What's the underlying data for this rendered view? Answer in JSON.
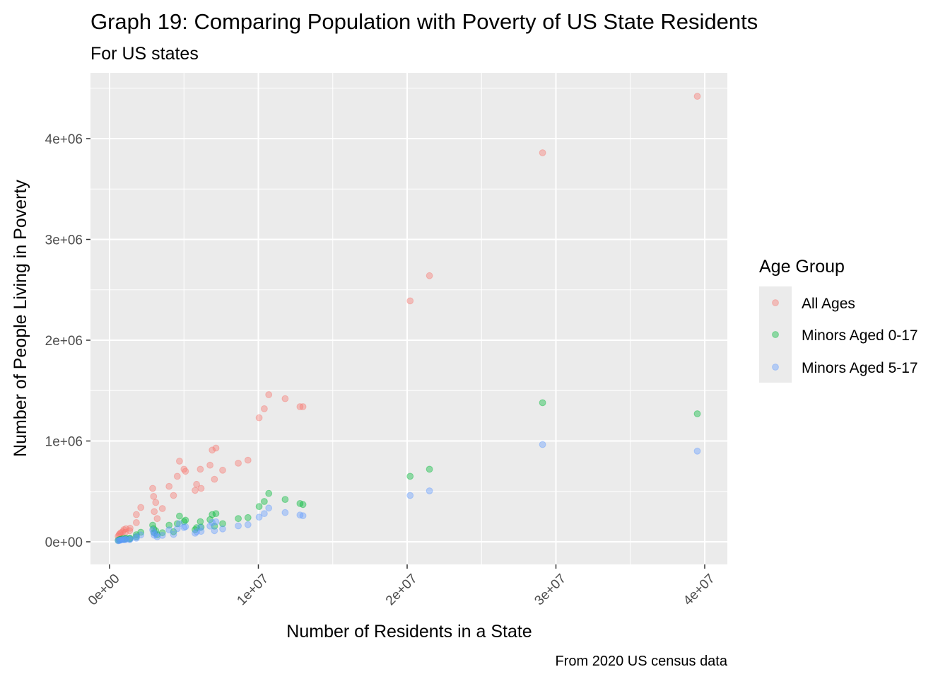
{
  "chart_data": {
    "type": "scatter",
    "title": "Graph 19: Comparing Population with Poverty of US State Residents",
    "subtitle": "For US states",
    "xlabel": "Number of Residents in a State",
    "ylabel": "Number of People Living in Poverty",
    "caption": "From 2020 US census data",
    "xlim": [
      -1200000,
      41500000
    ],
    "ylim": [
      -220000,
      4600000
    ],
    "x_ticks": [
      0,
      10000000,
      20000000,
      30000000,
      40000000
    ],
    "x_tick_labels": [
      "0e+00",
      "1e+07",
      "2e+07",
      "3e+07",
      "4e+07"
    ],
    "y_ticks": [
      0,
      1000000,
      2000000,
      3000000,
      4000000
    ],
    "y_tick_labels": [
      "0e+00",
      "1e+06",
      "2e+06",
      "3e+06",
      "4e+06"
    ],
    "grid": true,
    "legend": {
      "title": "Age Group",
      "position": "right"
    },
    "series": [
      {
        "name": "All Ages",
        "color": "#F8766D",
        "points": [
          [
            580000,
            55000
          ],
          [
            640000,
            70000
          ],
          [
            700000,
            80000
          ],
          [
            760000,
            90000
          ],
          [
            890000,
            100000
          ],
          [
            960000,
            120000
          ],
          [
            1060000,
            95000
          ],
          [
            1100000,
            130000
          ],
          [
            1350000,
            110000
          ],
          [
            1380000,
            135000
          ],
          [
            1800000,
            270000
          ],
          [
            1800000,
            190000
          ],
          [
            2100000,
            340000
          ],
          [
            2900000,
            530000
          ],
          [
            2960000,
            450000
          ],
          [
            3000000,
            300000
          ],
          [
            3100000,
            390000
          ],
          [
            3200000,
            230000
          ],
          [
            3550000,
            330000
          ],
          [
            4000000,
            550000
          ],
          [
            4300000,
            460000
          ],
          [
            4550000,
            650000
          ],
          [
            4700000,
            800000
          ],
          [
            5000000,
            720000
          ],
          [
            5100000,
            700000
          ],
          [
            5750000,
            510000
          ],
          [
            5850000,
            570000
          ],
          [
            6100000,
            720000
          ],
          [
            6150000,
            530000
          ],
          [
            6750000,
            760000
          ],
          [
            6900000,
            910000
          ],
          [
            7050000,
            620000
          ],
          [
            7150000,
            930000
          ],
          [
            7600000,
            710000
          ],
          [
            8650000,
            780000
          ],
          [
            9300000,
            810000
          ],
          [
            10050000,
            1230000
          ],
          [
            10400000,
            1320000
          ],
          [
            10700000,
            1460000
          ],
          [
            11800000,
            1420000
          ],
          [
            12800000,
            1340000
          ],
          [
            13000000,
            1340000
          ],
          [
            20200000,
            2390000
          ],
          [
            21500000,
            2640000
          ],
          [
            29100000,
            3860000
          ],
          [
            39500000,
            4420000
          ]
        ]
      },
      {
        "name": "Minors Aged 0-17",
        "color": "#00BA38",
        "points": [
          [
            580000,
            15000
          ],
          [
            640000,
            20000
          ],
          [
            700000,
            20000
          ],
          [
            760000,
            25000
          ],
          [
            890000,
            30000
          ],
          [
            960000,
            25000
          ],
          [
            1060000,
            30000
          ],
          [
            1100000,
            35000
          ],
          [
            1350000,
            30000
          ],
          [
            1380000,
            35000
          ],
          [
            1800000,
            70000
          ],
          [
            1800000,
            50000
          ],
          [
            2100000,
            95000
          ],
          [
            2900000,
            165000
          ],
          [
            2960000,
            130000
          ],
          [
            3000000,
            90000
          ],
          [
            3100000,
            110000
          ],
          [
            3200000,
            70000
          ],
          [
            3550000,
            90000
          ],
          [
            4000000,
            165000
          ],
          [
            4300000,
            100000
          ],
          [
            4550000,
            180000
          ],
          [
            4700000,
            255000
          ],
          [
            5000000,
            200000
          ],
          [
            5100000,
            215000
          ],
          [
            5750000,
            120000
          ],
          [
            5850000,
            140000
          ],
          [
            6100000,
            200000
          ],
          [
            6150000,
            145000
          ],
          [
            6750000,
            220000
          ],
          [
            6900000,
            270000
          ],
          [
            7050000,
            155000
          ],
          [
            7150000,
            280000
          ],
          [
            7600000,
            180000
          ],
          [
            8650000,
            230000
          ],
          [
            9300000,
            240000
          ],
          [
            10050000,
            350000
          ],
          [
            10400000,
            400000
          ],
          [
            10700000,
            480000
          ],
          [
            11800000,
            420000
          ],
          [
            12800000,
            380000
          ],
          [
            13000000,
            370000
          ],
          [
            20200000,
            650000
          ],
          [
            21500000,
            720000
          ],
          [
            29100000,
            1380000
          ],
          [
            39500000,
            1270000
          ]
        ]
      },
      {
        "name": "Minors Aged 5-17",
        "color": "#619CFF",
        "points": [
          [
            580000,
            10000
          ],
          [
            640000,
            14000
          ],
          [
            700000,
            15000
          ],
          [
            760000,
            18000
          ],
          [
            890000,
            22000
          ],
          [
            960000,
            20000
          ],
          [
            1060000,
            22000
          ],
          [
            1100000,
            26000
          ],
          [
            1350000,
            22000
          ],
          [
            1380000,
            26000
          ],
          [
            1800000,
            50000
          ],
          [
            1800000,
            36000
          ],
          [
            2100000,
            68000
          ],
          [
            2900000,
            118000
          ],
          [
            2960000,
            92000
          ],
          [
            3000000,
            65000
          ],
          [
            3100000,
            78000
          ],
          [
            3200000,
            50000
          ],
          [
            3550000,
            64000
          ],
          [
            4000000,
            118000
          ],
          [
            4300000,
            72000
          ],
          [
            4550000,
            130000
          ],
          [
            4700000,
            180000
          ],
          [
            5000000,
            142000
          ],
          [
            5100000,
            150000
          ],
          [
            5750000,
            85000
          ],
          [
            5850000,
            100000
          ],
          [
            6100000,
            142000
          ],
          [
            6150000,
            104000
          ],
          [
            6750000,
            156000
          ],
          [
            6900000,
            190000
          ],
          [
            7050000,
            110000
          ],
          [
            7150000,
            198000
          ],
          [
            7600000,
            128000
          ],
          [
            8650000,
            158000
          ],
          [
            9300000,
            170000
          ],
          [
            10050000,
            245000
          ],
          [
            10400000,
            280000
          ],
          [
            10700000,
            335000
          ],
          [
            11800000,
            290000
          ],
          [
            12800000,
            265000
          ],
          [
            13000000,
            258000
          ],
          [
            20200000,
            460000
          ],
          [
            21500000,
            505000
          ],
          [
            29100000,
            965000
          ],
          [
            39500000,
            900000
          ]
        ]
      }
    ]
  }
}
